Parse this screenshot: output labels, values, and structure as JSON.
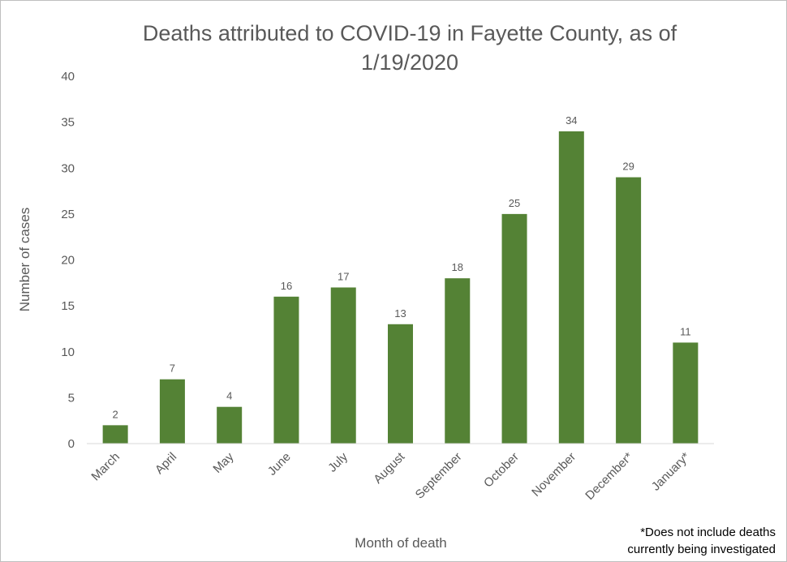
{
  "chart_data": {
    "type": "bar",
    "title_lines": [
      "Deaths attributed to COVID-19 in Fayette County, as of",
      "1/19/2020"
    ],
    "xlabel": "Month of death",
    "ylabel": "Number of cases",
    "categories": [
      "March",
      "April",
      "May",
      "June",
      "July",
      "August",
      "September",
      "October",
      "November",
      "December*",
      "January*"
    ],
    "values": [
      2,
      7,
      4,
      16,
      17,
      13,
      18,
      25,
      34,
      29,
      11
    ],
    "ylim": [
      0,
      40
    ],
    "yticks": [
      0,
      5,
      10,
      15,
      20,
      25,
      30,
      35,
      40
    ],
    "grid": false,
    "legend": "none",
    "bar_color": "#548235",
    "footnote_lines": [
      "*Does not include deaths",
      "currently being investigated"
    ]
  }
}
